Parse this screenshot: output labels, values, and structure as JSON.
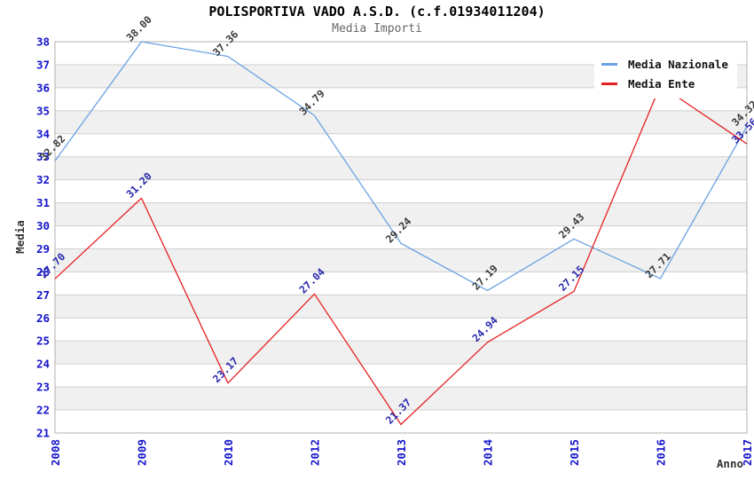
{
  "title": "POLISPORTIVA VADO A.S.D. (c.f.01934011204)",
  "subtitle": "Media Importi",
  "legend": {
    "items": [
      {
        "label": "Media Nazionale",
        "series": "nazionale"
      },
      {
        "label": "Media Ente",
        "series": "ente"
      }
    ]
  },
  "axes": {
    "y_title": "Media",
    "x_title": "Anno",
    "y_tick_min": 21,
    "y_tick_max": 38
  },
  "colors": {
    "nazionale_line": "#6AA1E3",
    "ente_line": "#E62020",
    "nazionale_value_label": "#3A3A3A",
    "ente_value_label": "#2828AC",
    "tick_text": "#1414CC",
    "axis_title_text": "#333333",
    "band_fill": "#F0F0F0",
    "grid_line": "#CFCFCF",
    "plot_border": "#B0B0B0",
    "legend_bg": "#FFFFFF"
  },
  "chart_data": {
    "type": "line",
    "title": "POLISPORTIVA VADO A.S.D. (c.f.01934011204)",
    "subtitle": "Media Importi",
    "xlabel": "Anno",
    "ylabel": "Media",
    "ylim": [
      21,
      38
    ],
    "grid": "horizontal-bands-alternating",
    "legend_position": "top-right-inside",
    "categories": [
      "2008",
      "2009",
      "2010",
      "2012",
      "2013",
      "2014",
      "2015",
      "2016",
      "2017"
    ],
    "series": [
      {
        "name": "Media Nazionale",
        "color_key": "nazionale",
        "values": [
          32.82,
          38.0,
          37.36,
          34.79,
          29.24,
          27.19,
          29.43,
          27.71,
          34.32
        ],
        "point_labels": [
          "32.82",
          "38.00",
          "37.36",
          "34.79",
          "29.24",
          "27.19",
          "29.43",
          "27.71",
          "34.32"
        ]
      },
      {
        "name": "Media Ente",
        "color_key": "ente",
        "values": [
          27.7,
          31.2,
          23.17,
          27.04,
          21.37,
          24.94,
          27.15,
          36.1,
          33.56
        ],
        "point_labels": [
          "27.70",
          "31.20",
          "23.17",
          "27.04",
          "21.37",
          "24.94",
          "27.15",
          null,
          "33.56"
        ],
        "note": "2016 point label hidden behind legend box"
      }
    ]
  }
}
